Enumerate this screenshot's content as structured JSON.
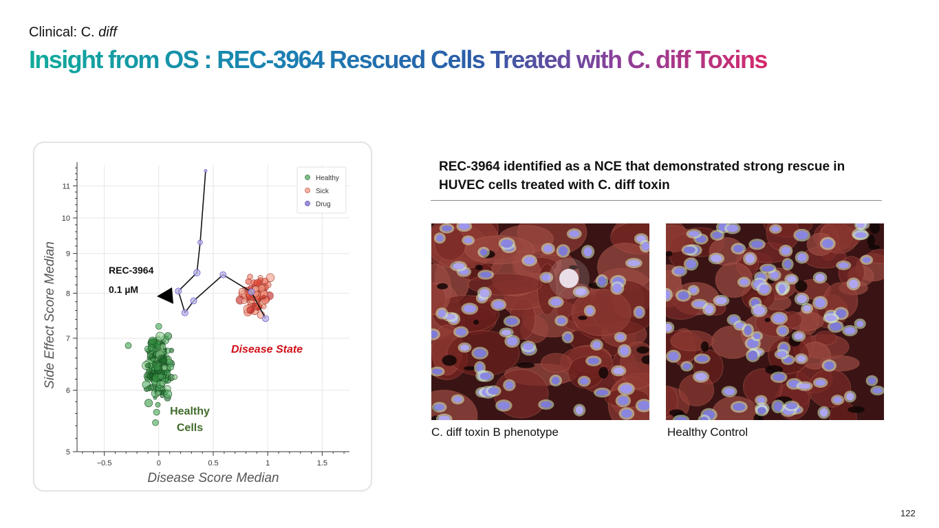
{
  "slide": {
    "kicker_prefix": "Clinical: C. ",
    "kicker_italic": "diff",
    "title": "Insight from OS : REC-3964 Rescued Cells Treated with C. diff Toxins",
    "headline": "REC-3964 identified as a NCE that demonstrated strong rescue in HUVEC cells treated with C. diff toxin",
    "page_number": "122"
  },
  "images": [
    {
      "caption": "C. diff toxin B phenotype"
    },
    {
      "caption": "Healthy Control"
    }
  ],
  "colors": {
    "healthy": "#2e8b3e",
    "sick": "#e8553f",
    "drug": "#6a5acd",
    "disease_label": "#d0101a",
    "healthy_label": "#3f6b2a"
  },
  "chart_data": {
    "type": "scatter",
    "xlabel": "Disease Score Median",
    "ylabel": "Side Effect Score Median",
    "xlim": [
      -0.75,
      1.75
    ],
    "ylim": [
      5,
      11.7
    ],
    "y_scale": "log",
    "x_ticks": [
      "−0.5",
      "0",
      "0.5",
      "1",
      "1.5"
    ],
    "x_tick_values": [
      -0.5,
      0,
      0.5,
      1,
      1.5
    ],
    "y_ticks": [
      "5",
      "6",
      "7",
      "8",
      "9",
      "10",
      "11"
    ],
    "y_tick_values": [
      5,
      6,
      7,
      8,
      9,
      10,
      11
    ],
    "grid": true,
    "legend_position": "top-right",
    "legend": [
      "Healthy",
      "Sick",
      "Drug"
    ],
    "series": [
      {
        "name": "Healthy",
        "center": [
          0.0,
          6.4
        ],
        "spread": [
          0.09,
          0.45
        ],
        "count": 240
      },
      {
        "name": "Sick",
        "center": [
          0.9,
          7.95
        ],
        "spread": [
          0.09,
          0.35
        ],
        "count": 120
      },
      {
        "name": "Drug",
        "path": [
          [
            0.43,
            11.5
          ],
          [
            0.38,
            9.3
          ],
          [
            0.35,
            8.5
          ],
          [
            0.18,
            8.05
          ],
          [
            0.24,
            7.55
          ],
          [
            0.32,
            7.82
          ],
          [
            0.59,
            8.45
          ],
          [
            0.85,
            8.03
          ],
          [
            0.98,
            7.42
          ]
        ]
      }
    ],
    "annotations": {
      "compound": "REC-3964",
      "concentration": "0.1 µM",
      "disease": "Disease State",
      "healthy_line1": "Healthy",
      "healthy_line2": "Cells"
    }
  }
}
